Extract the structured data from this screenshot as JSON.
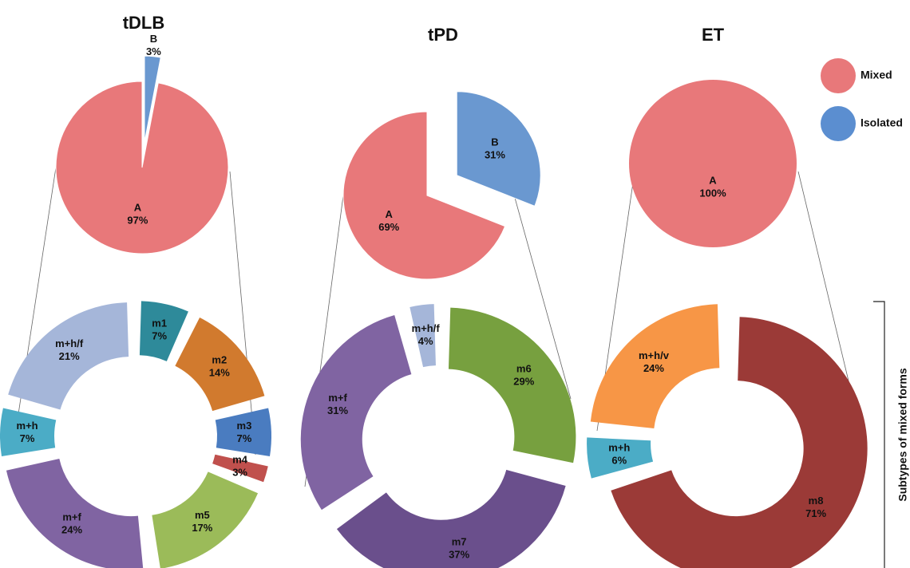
{
  "chart_data": [
    {
      "type": "pie",
      "title": "tDLB",
      "categories": [
        "A",
        "B"
      ],
      "values": [
        97,
        3
      ],
      "value_labels": [
        "97%",
        "3%"
      ],
      "colors": [
        "#e8787a",
        "#6a98d0"
      ]
    },
    {
      "type": "pie",
      "title": "tPD",
      "categories": [
        "A",
        "B"
      ],
      "values": [
        69,
        31
      ],
      "value_labels": [
        "69%",
        "31%"
      ],
      "colors": [
        "#e8787a",
        "#6a98d0"
      ]
    },
    {
      "type": "pie",
      "title": "ET",
      "categories": [
        "A"
      ],
      "values": [
        100
      ],
      "value_labels": [
        "100%"
      ],
      "colors": [
        "#e8787a"
      ]
    },
    {
      "type": "donut",
      "categories": [
        "m1",
        "m2",
        "m3",
        "m4",
        "m5",
        "m+f",
        "m+h",
        "m+h/f"
      ],
      "values": [
        7,
        14,
        7,
        3,
        17,
        24,
        7,
        21
      ],
      "value_labels": [
        "7%",
        "14%",
        "7%",
        "3%",
        "17%",
        "24%",
        "7%",
        "21%"
      ],
      "colors": [
        "#2e8a9a",
        "#d17a2e",
        "#4a7cc0",
        "#c0504d",
        "#9bbb59",
        "#8064a2",
        "#4bacc6",
        "#a5b6d9"
      ]
    },
    {
      "type": "donut",
      "categories": [
        "m6",
        "m7",
        "m+f",
        "m+h/f"
      ],
      "values": [
        29,
        37,
        31,
        4
      ],
      "value_labels": [
        "29%",
        "37%",
        "31%",
        "4%"
      ],
      "colors": [
        "#77a03f",
        "#6a4f8c",
        "#8064a2",
        "#a5b6d9"
      ]
    },
    {
      "type": "donut",
      "categories": [
        "m8",
        "m+h",
        "m+h/v"
      ],
      "values": [
        71,
        6,
        24
      ],
      "value_labels": [
        "71%",
        "6%",
        "24%"
      ],
      "colors": [
        "#9b3a37",
        "#4bacc6",
        "#f79646"
      ]
    }
  ],
  "legend": {
    "entries": [
      {
        "name": "Mixed",
        "color": "#e8787a"
      },
      {
        "name": "Isolated",
        "color": "#5b8ed0"
      }
    ]
  },
  "side_label": "Subtypes of mixed forms"
}
